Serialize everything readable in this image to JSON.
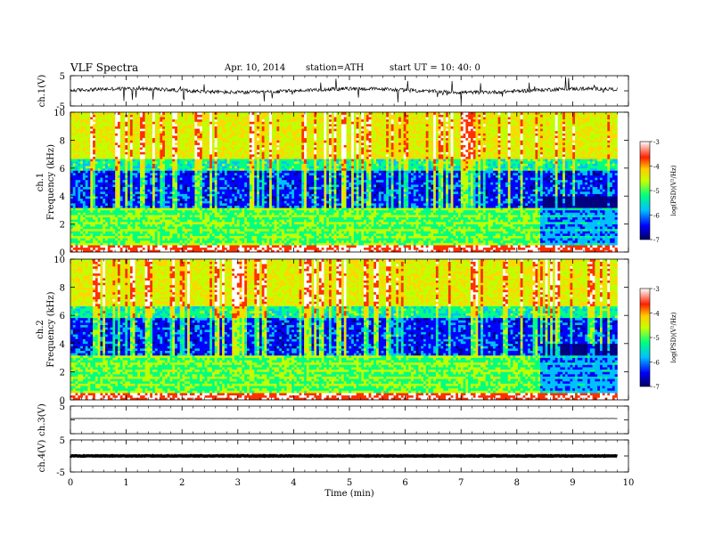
{
  "header": {
    "title": "VLF  Spectra",
    "date": "Apr. 10, 2014",
    "station": "station=ATH",
    "start": "start  UT  =   10: 40: 0"
  },
  "chart_data": [
    {
      "type": "line",
      "id": "ch1-waveform",
      "ylabel": "ch.1(V)",
      "ylim": [
        -5,
        5
      ],
      "yticks": [
        "5",
        "-5"
      ],
      "description_series": {
        "baseline": 0.1,
        "noise_amplitude": 1.2
      }
    },
    {
      "type": "heatmap",
      "id": "ch1-spectrogram",
      "ylabel_channel": "ch.1",
      "ylabel": "Frequency  (kHz)",
      "ylim": [
        0,
        10
      ],
      "yticks": [
        "0",
        "2",
        "4",
        "6",
        "8",
        "10"
      ],
      "zlabel": "log(PSD)(V²/Hz)",
      "zlim": [
        -7,
        -3
      ],
      "zticks": [
        "-3",
        "-4",
        "-5",
        "-6",
        "-7"
      ]
    },
    {
      "type": "heatmap",
      "id": "ch2-spectrogram",
      "ylabel_channel": "ch.2",
      "ylabel": "Frequency  (kHz)",
      "ylim": [
        0,
        10
      ],
      "yticks": [
        "0",
        "2",
        "4",
        "6",
        "8",
        "10"
      ],
      "zlabel": "log(PSD)(V²/Hz)",
      "zlim": [
        -7,
        -3
      ],
      "zticks": [
        "-3",
        "-4",
        "-5",
        "-6",
        "-7"
      ]
    },
    {
      "type": "line",
      "id": "ch3-waveform",
      "ylabel": "ch.3(V)",
      "ylim": [
        -5,
        5
      ],
      "yticks": [
        "5"
      ],
      "description_series": {
        "baseline": 0.5,
        "noise_amplitude": 0.05
      }
    },
    {
      "type": "line",
      "id": "ch4-waveform",
      "ylabel": "ch.4(V)",
      "ylim": [
        -5,
        5
      ],
      "yticks": [
        "5",
        "-5"
      ],
      "description_series": {
        "baseline": 0,
        "noise_amplitude": 0.15
      }
    }
  ],
  "xaxis": {
    "label": "Time  (min)",
    "xlim": [
      0,
      10
    ],
    "ticks": [
      "0",
      "1",
      "2",
      "3",
      "4",
      "5",
      "6",
      "7",
      "8",
      "9",
      "10"
    ],
    "data_end": 9.8
  },
  "colormap": [
    "#000080",
    "#0000ff",
    "#00bfff",
    "#00ff80",
    "#c0ff00",
    "#ffd700",
    "#ff3000",
    "#ffffff"
  ]
}
